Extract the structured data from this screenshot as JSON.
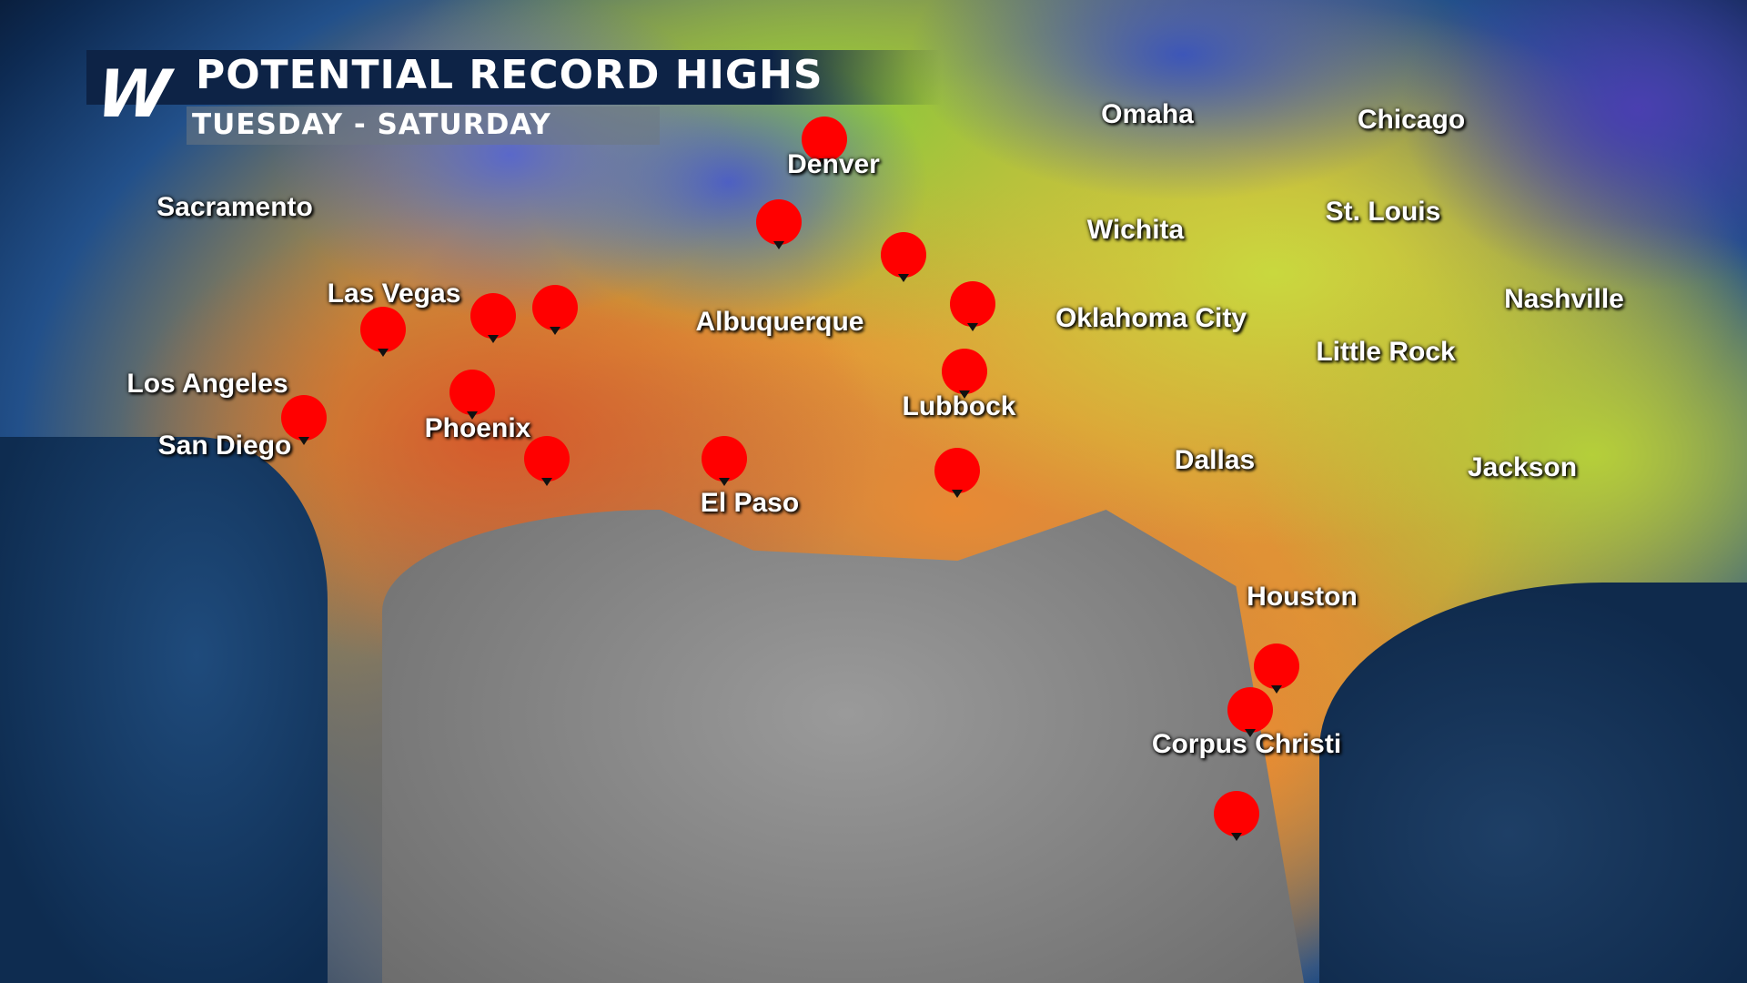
{
  "header": {
    "logo": "W",
    "title": "POTENTIAL RECORD HIGHS",
    "subtitle": "TUESDAY - SATURDAY"
  },
  "cities": [
    "Omaha",
    "Chicago",
    "Denver",
    "Sacramento",
    "Wichita",
    "St. Louis",
    "Nashville",
    "Las Vegas",
    "Albuquerque",
    "Oklahoma City",
    "Little Rock",
    "Los Angeles",
    "Lubbock",
    "Phoenix",
    "San Diego",
    "Dallas",
    "Jackson",
    "El Paso",
    "Houston",
    "Corpus Christi"
  ],
  "markers": {
    "icon": "map-pin-icon",
    "color": "#ff0000",
    "count": 16
  },
  "colors": {
    "hot": "#e06a2c",
    "warm": "#e8a83a",
    "mild": "#c9d83e",
    "cool": "#4d5fc2",
    "mexico": "#8a8a8a",
    "ocean": "#0f2a4c"
  }
}
